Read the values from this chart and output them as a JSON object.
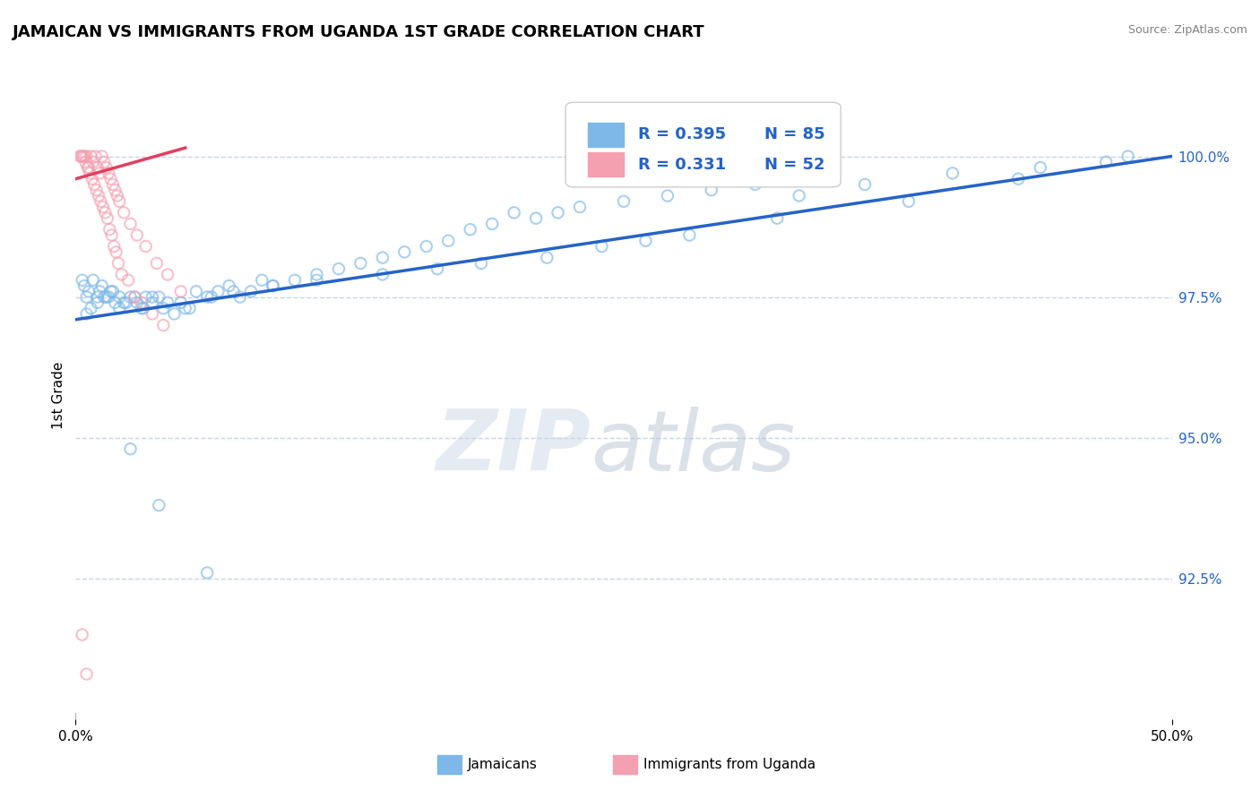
{
  "title": "JAMAICAN VS IMMIGRANTS FROM UGANDA 1ST GRADE CORRELATION CHART",
  "source": "Source: ZipAtlas.com",
  "ylabel": "1st Grade",
  "xlim": [
    0.0,
    50.0
  ],
  "ylim": [
    90.0,
    101.5
  ],
  "x_tick_labels": [
    "0.0%",
    "50.0%"
  ],
  "y_ticks_right": [
    92.5,
    95.0,
    97.5,
    100.0
  ],
  "y_tick_labels_right": [
    "92.5%",
    "95.0%",
    "97.5%",
    "100.0%"
  ],
  "legend_r_blue": "R = 0.395",
  "legend_n_blue": "N = 85",
  "legend_r_pink": "R = 0.331",
  "legend_n_pink": "N = 52",
  "blue_color": "#7db8e8",
  "pink_color": "#f4a0b0",
  "trend_blue": "#2563c7",
  "trend_pink": "#e04060",
  "legend_label_blue": "Jamaicans",
  "legend_label_pink": "Immigrants from Uganda",
  "blue_scatter": {
    "x": [
      0.3,
      0.4,
      0.5,
      0.6,
      0.8,
      1.0,
      1.1,
      1.2,
      1.3,
      1.5,
      1.6,
      1.8,
      2.0,
      2.2,
      2.5,
      2.8,
      3.0,
      3.2,
      3.5,
      3.8,
      4.0,
      4.5,
      4.8,
      5.0,
      5.5,
      6.0,
      6.5,
      7.0,
      7.5,
      8.0,
      8.5,
      9.0,
      10.0,
      11.0,
      12.0,
      13.0,
      14.0,
      15.0,
      16.0,
      17.0,
      18.0,
      19.0,
      20.0,
      21.0,
      22.0,
      23.0,
      25.0,
      27.0,
      29.0,
      31.0,
      33.0,
      36.0,
      40.0,
      44.0,
      47.0,
      0.5,
      0.7,
      1.0,
      1.4,
      1.7,
      2.0,
      2.3,
      2.7,
      3.1,
      3.5,
      4.2,
      5.2,
      6.2,
      7.2,
      9.0,
      11.0,
      14.0,
      16.5,
      18.5,
      21.5,
      24.0,
      26.0,
      28.0,
      32.0,
      38.0,
      43.0,
      2.5,
      3.8,
      6.0,
      48.0
    ],
    "y": [
      97.8,
      97.7,
      97.5,
      97.6,
      97.8,
      97.5,
      97.6,
      97.7,
      97.5,
      97.5,
      97.6,
      97.4,
      97.3,
      97.4,
      97.5,
      97.4,
      97.3,
      97.5,
      97.4,
      97.5,
      97.3,
      97.2,
      97.4,
      97.3,
      97.6,
      97.5,
      97.6,
      97.7,
      97.5,
      97.6,
      97.8,
      97.7,
      97.8,
      97.9,
      98.0,
      98.1,
      98.2,
      98.3,
      98.4,
      98.5,
      98.7,
      98.8,
      99.0,
      98.9,
      99.0,
      99.1,
      99.2,
      99.3,
      99.4,
      99.5,
      99.3,
      99.5,
      99.7,
      99.8,
      99.9,
      97.2,
      97.3,
      97.4,
      97.5,
      97.6,
      97.5,
      97.4,
      97.5,
      97.3,
      97.5,
      97.4,
      97.3,
      97.5,
      97.6,
      97.7,
      97.8,
      97.9,
      98.0,
      98.1,
      98.2,
      98.4,
      98.5,
      98.6,
      98.9,
      99.2,
      99.6,
      94.8,
      93.8,
      92.6,
      100.0
    ]
  },
  "pink_scatter": {
    "x": [
      0.2,
      0.3,
      0.4,
      0.5,
      0.6,
      0.7,
      0.8,
      0.9,
      1.0,
      1.1,
      1.2,
      1.3,
      1.4,
      1.5,
      1.6,
      1.7,
      1.8,
      1.9,
      2.0,
      2.2,
      2.5,
      2.8,
      3.2,
      3.7,
      4.2,
      4.8,
      0.25,
      0.35,
      0.45,
      0.55,
      0.65,
      0.75,
      0.85,
      0.95,
      1.05,
      1.15,
      1.25,
      1.35,
      1.45,
      1.55,
      1.65,
      1.75,
      1.85,
      1.95,
      2.1,
      2.4,
      2.7,
      3.0,
      3.5,
      4.0,
      0.3,
      0.5
    ],
    "y": [
      100.0,
      100.0,
      100.0,
      100.0,
      99.8,
      100.0,
      99.9,
      100.0,
      99.8,
      99.7,
      100.0,
      99.9,
      99.8,
      99.7,
      99.6,
      99.5,
      99.4,
      99.3,
      99.2,
      99.0,
      98.8,
      98.6,
      98.4,
      98.1,
      97.9,
      97.6,
      100.0,
      100.0,
      99.9,
      99.8,
      99.7,
      99.6,
      99.5,
      99.4,
      99.3,
      99.2,
      99.1,
      99.0,
      98.9,
      98.7,
      98.6,
      98.4,
      98.3,
      98.1,
      97.9,
      97.8,
      97.5,
      97.4,
      97.2,
      97.0,
      91.5,
      90.8
    ]
  },
  "blue_trend_x": [
    0.0,
    50.0
  ],
  "blue_trend_y": [
    97.1,
    100.0
  ],
  "pink_trend_x": [
    0.0,
    5.0
  ],
  "pink_trend_y": [
    99.6,
    100.15
  ],
  "background_color": "#ffffff",
  "grid_color": "#c8d4e8",
  "dot_size": 80,
  "dot_alpha": 0.65,
  "dot_linewidth": 1.5
}
